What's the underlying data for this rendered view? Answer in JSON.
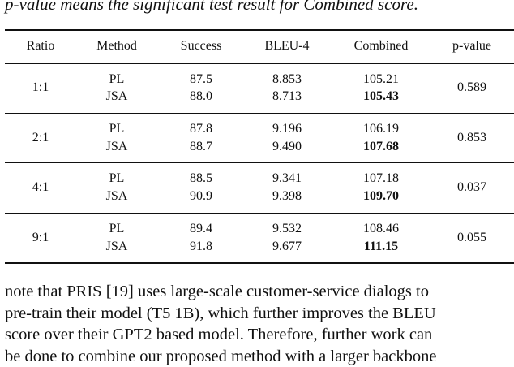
{
  "caption": "p-value means the significant test result for Combined score.",
  "table": {
    "headers": [
      "Ratio",
      "Method",
      "Success",
      "BLEU-4",
      "Combined",
      "p-value"
    ],
    "groups": [
      {
        "ratio": "1:1",
        "p_value": "0.589",
        "rows": [
          {
            "method": "PL",
            "success": "87.5",
            "bleu4": "8.853",
            "combined": "105.21"
          },
          {
            "method": "JSA",
            "success": "88.0",
            "bleu4": "8.713",
            "combined": "105.43"
          }
        ]
      },
      {
        "ratio": "2:1",
        "p_value": "0.853",
        "rows": [
          {
            "method": "PL",
            "success": "87.8",
            "bleu4": "9.196",
            "combined": "106.19"
          },
          {
            "method": "JSA",
            "success": "88.7",
            "bleu4": "9.490",
            "combined": "107.68"
          }
        ]
      },
      {
        "ratio": "4:1",
        "p_value": "0.037",
        "rows": [
          {
            "method": "PL",
            "success": "88.5",
            "bleu4": "9.341",
            "combined": "107.18"
          },
          {
            "method": "JSA",
            "success": "90.9",
            "bleu4": "9.398",
            "combined": "109.70"
          }
        ]
      },
      {
        "ratio": "9:1",
        "p_value": "0.055",
        "rows": [
          {
            "method": "PL",
            "success": "89.4",
            "bleu4": "9.532",
            "combined": "108.46"
          },
          {
            "method": "JSA",
            "success": "91.8",
            "bleu4": "9.677",
            "combined": "111.15"
          }
        ]
      }
    ]
  },
  "paragraph_lines": [
    "note that PRIS [19] uses large-scale customer-service dialogs to",
    "pre-train their model (T5 1B), which further improves the BLEU",
    "score over their GPT2 based model. Therefore, further work can",
    "be done to combine our proposed method with a larger backbone"
  ]
}
